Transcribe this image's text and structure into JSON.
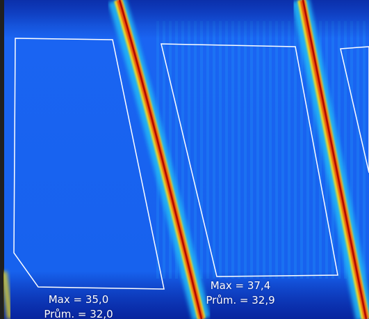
{
  "image": {
    "kind": "thermal-camera-image",
    "palette": [
      "#0b2fb0",
      "#1560f0",
      "#23b7f5",
      "#f2e020",
      "#e84a10",
      "#b00a00"
    ],
    "dark_border_color": "#202020"
  },
  "regions": [
    {
      "max_label": "Max = 35,0",
      "avg_label": "Prům. = 32,0"
    },
    {
      "max_label": "Max = 37,4",
      "avg_label": "Prům. = 32,9"
    },
    {}
  ]
}
